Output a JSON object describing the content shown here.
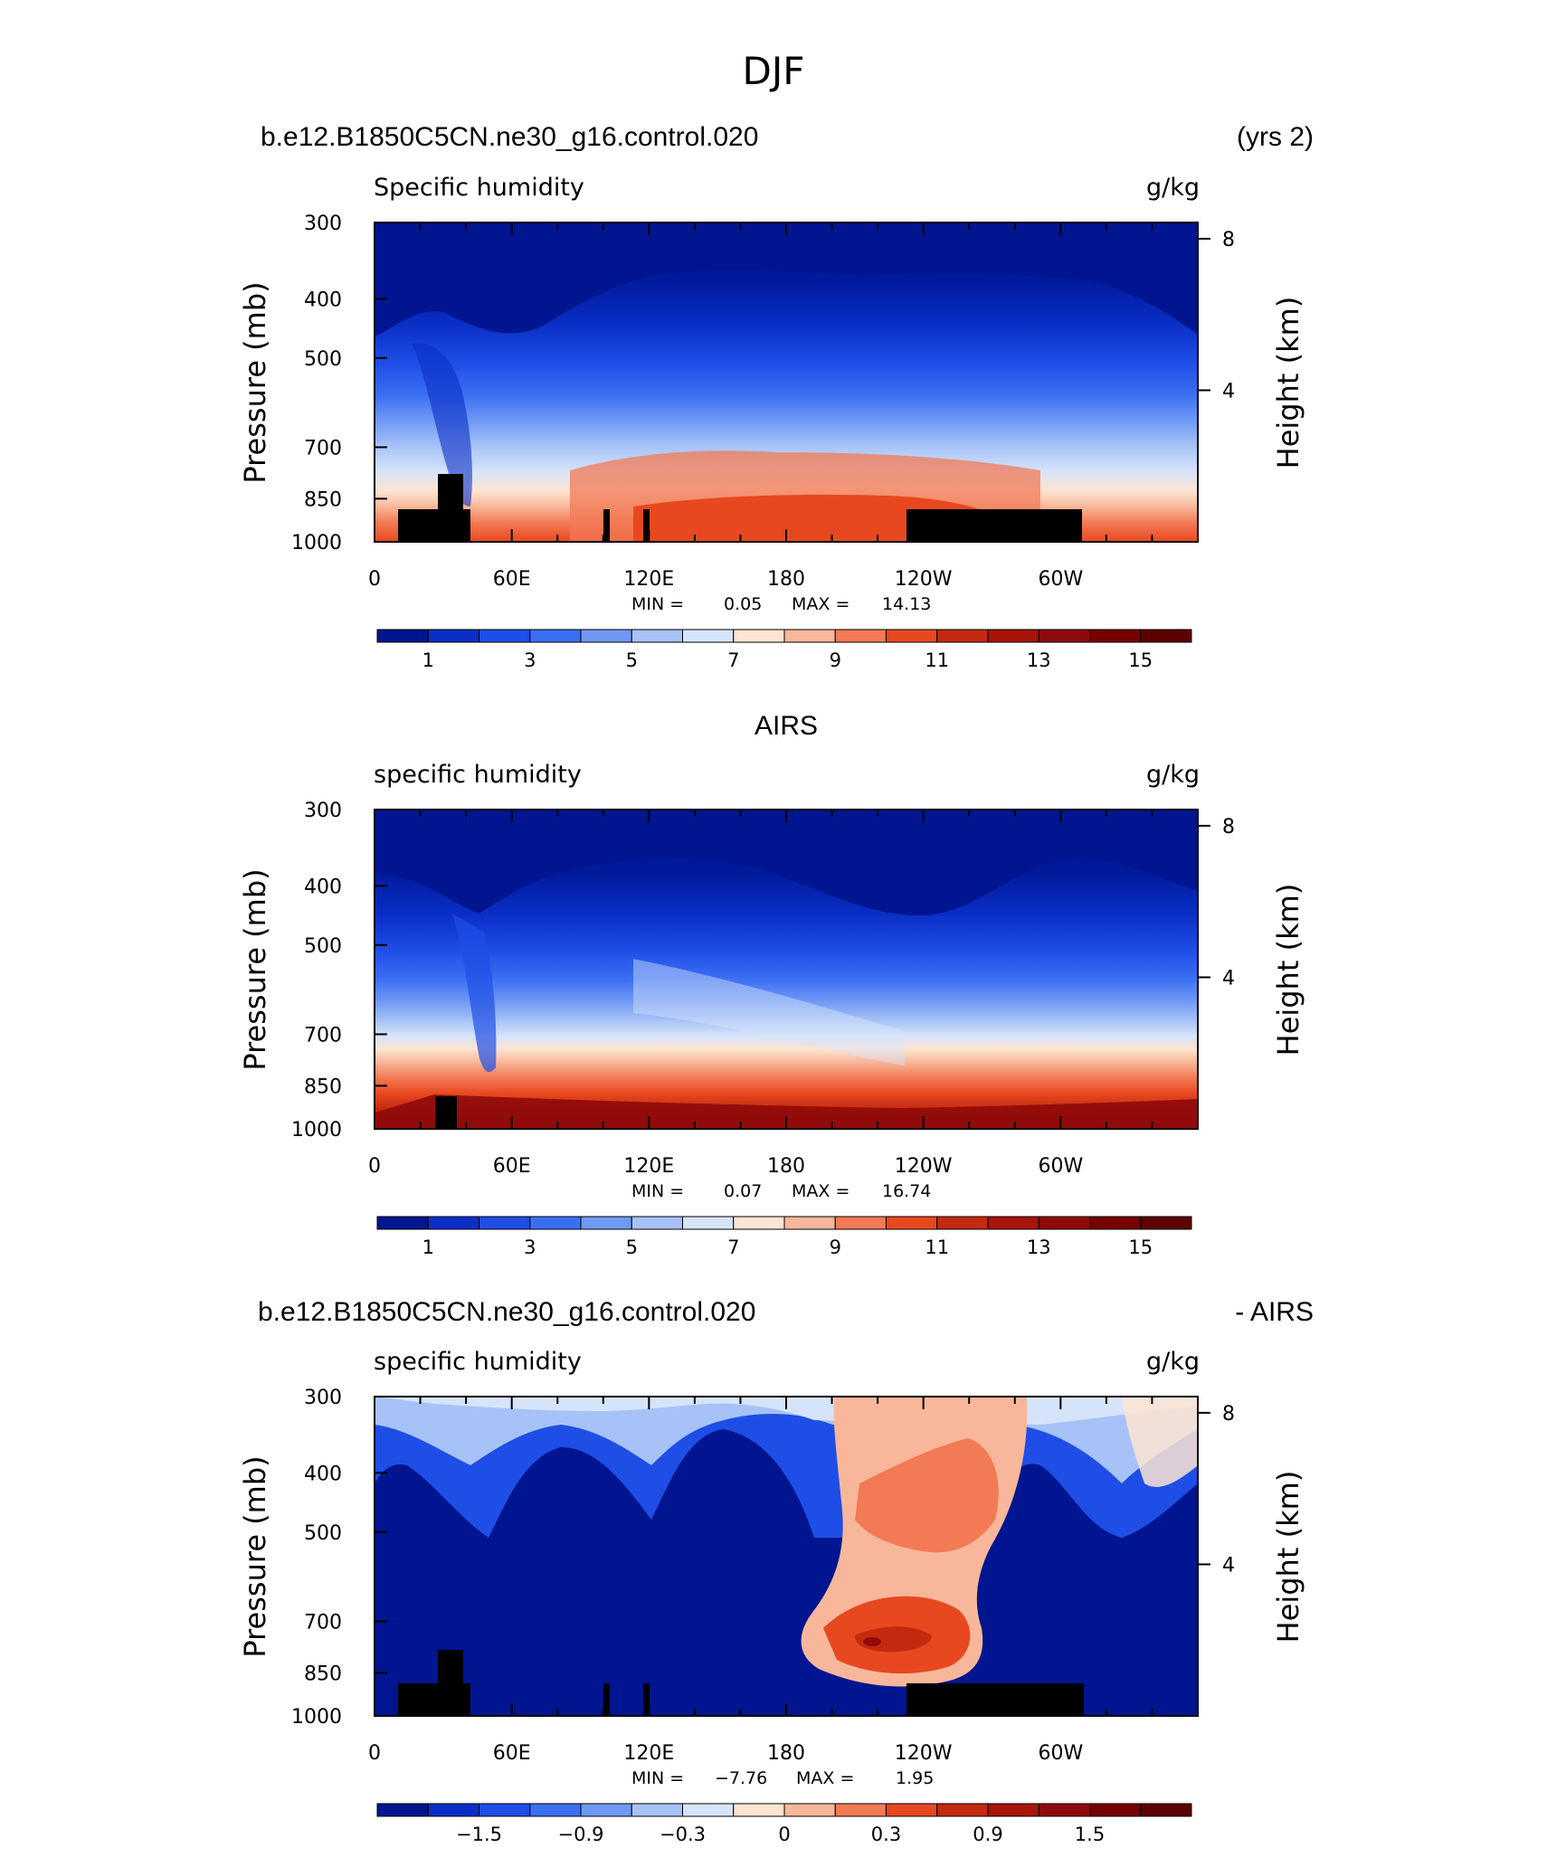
{
  "figure_title": "DJF",
  "chart_data": [
    {
      "type": "contour",
      "case_title": "b.e12.B1850C5CN.ne30_g16.control.020",
      "case_suffix": "(yrs 2)",
      "variable": "Specific humidity",
      "units": "g/kg",
      "ylabel": "Pressure (mb)",
      "y2label": "Height (km)",
      "pressure_ticks": [
        "300",
        "400",
        "500",
        "700",
        "850",
        "1000"
      ],
      "height_ticks": [
        "8",
        "4"
      ],
      "lon_ticks": [
        "0",
        "60E",
        "120E",
        "180",
        "120W",
        "60W"
      ],
      "stats": {
        "min_label": "MIN =",
        "min": "0.05",
        "max_label": "MAX =",
        "max": "14.13"
      },
      "colorbar": {
        "levels": [
          "1",
          "3",
          "5",
          "7",
          "9",
          "11",
          "13",
          "15"
        ]
      }
    },
    {
      "type": "contour",
      "case_title": "AIRS",
      "case_suffix": "",
      "variable": "specific humidity",
      "units": "g/kg",
      "ylabel": "Pressure (mb)",
      "y2label": "Height (km)",
      "pressure_ticks": [
        "300",
        "400",
        "500",
        "700",
        "850",
        "1000"
      ],
      "height_ticks": [
        "8",
        "4"
      ],
      "lon_ticks": [
        "0",
        "60E",
        "120E",
        "180",
        "120W",
        "60W"
      ],
      "stats": {
        "min_label": "MIN =",
        "min": "0.07",
        "max_label": "MAX =",
        "max": "16.74"
      },
      "colorbar": {
        "levels": [
          "1",
          "3",
          "5",
          "7",
          "9",
          "11",
          "13",
          "15"
        ]
      }
    },
    {
      "type": "contour",
      "case_title": "b.e12.B1850C5CN.ne30_g16.control.020",
      "case_suffix": "- AIRS",
      "variable": "specific humidity",
      "units": "g/kg",
      "ylabel": "Pressure (mb)",
      "y2label": "Height (km)",
      "pressure_ticks": [
        "300",
        "400",
        "500",
        "700",
        "850",
        "1000"
      ],
      "height_ticks": [
        "8",
        "4"
      ],
      "lon_ticks": [
        "0",
        "60E",
        "120E",
        "180",
        "120W",
        "60W"
      ],
      "stats": {
        "min_label": "MIN =",
        "min": "−7.76",
        "max_label": "MAX =",
        "max": "1.95"
      },
      "colorbar": {
        "levels": [
          "−1.5",
          "−0.9",
          "−0.3",
          "0",
          "0.3",
          "0.9",
          "1.5"
        ]
      }
    }
  ]
}
